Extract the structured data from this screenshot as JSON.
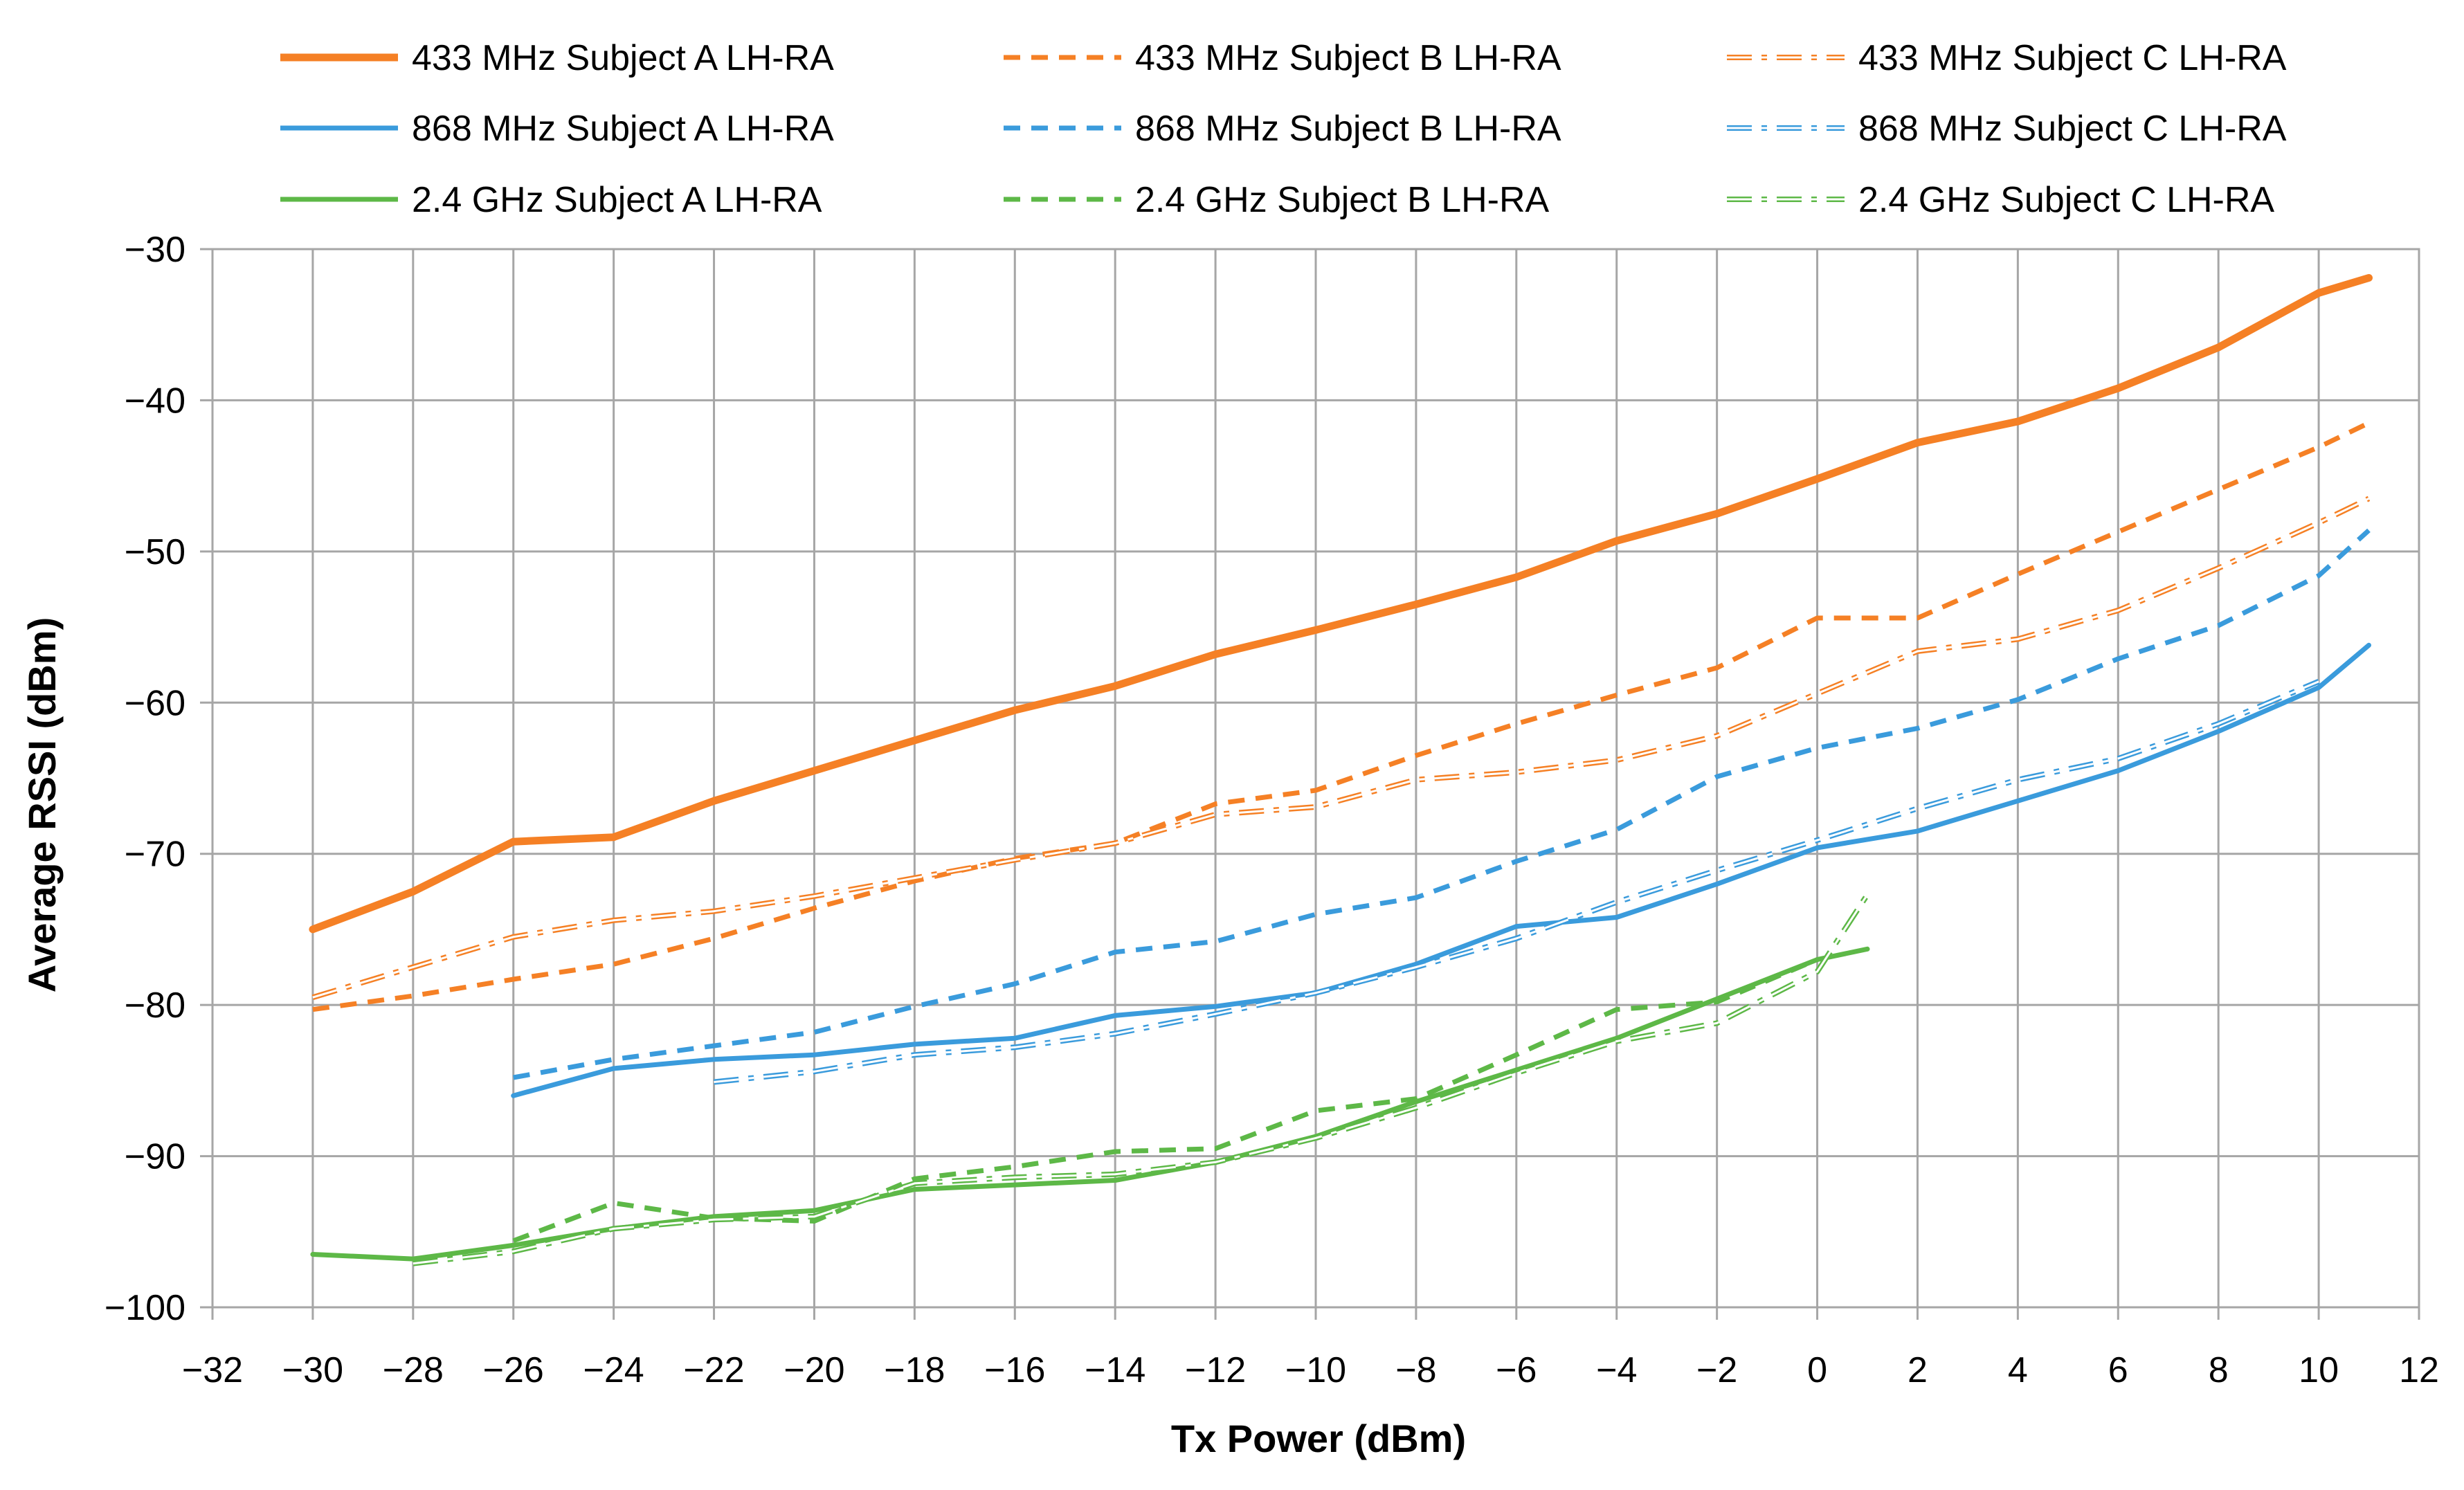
{
  "chart_data": {
    "type": "line",
    "title": "",
    "xlabel": "Tx Power (dBm)",
    "ylabel": "Average RSSI (dBm)",
    "xlim": [
      -32,
      12
    ],
    "ylim": [
      -100,
      -30
    ],
    "xticks": [
      -32,
      -30,
      -28,
      -26,
      -24,
      -22,
      -20,
      -18,
      -16,
      -14,
      -12,
      -10,
      -8,
      -6,
      -4,
      -2,
      0,
      2,
      4,
      6,
      8,
      10,
      12
    ],
    "yticks": [
      -100,
      -90,
      -80,
      -70,
      -60,
      -50,
      -40,
      -30
    ],
    "tick_labels": {
      "x": [
        "−32",
        "−30",
        "−28",
        "−26",
        "−24",
        "−22",
        "−20",
        "−18",
        "−16",
        "−14",
        "−12",
        "−10",
        "−8",
        "−6",
        "−4",
        "−2",
        "0",
        "2",
        "4",
        "6",
        "8",
        "10",
        "12"
      ],
      "y": [
        "−100",
        "−90",
        "−80",
        "−70",
        "−60",
        "−50",
        "−40",
        "−30"
      ]
    },
    "grid": true,
    "legend_position": "top",
    "series": [
      {
        "name": "433 MHz Subject A LH-RA",
        "color": "#F58025",
        "style": "solid",
        "weight": "thick",
        "x": [
          -30,
          -28,
          -26,
          -24,
          -22,
          -20,
          -18,
          -16,
          -14,
          -12,
          -10,
          -8,
          -6,
          -4,
          -2,
          0,
          2,
          4,
          6,
          8,
          10,
          11
        ],
        "y": [
          -75,
          -72.5,
          -69.2,
          -68.9,
          -66.5,
          -64.5,
          -62.5,
          -60.5,
          -58.9,
          -56.8,
          -55.2,
          -53.5,
          -51.7,
          -49.3,
          -47.5,
          -45.2,
          -42.8,
          -41.4,
          -39.2,
          -36.5,
          -32.9,
          -31.9
        ]
      },
      {
        "name": "433 MHz Subject B LH-RA",
        "color": "#F58025",
        "style": "dash",
        "weight": "normal",
        "x": [
          -30,
          -28,
          -26,
          -24,
          -22,
          -20,
          -18,
          -16,
          -14,
          -12,
          -10,
          -8,
          -6,
          -4,
          -2,
          0,
          2,
          4,
          6,
          8,
          10,
          11
        ],
        "y": [
          -80.3,
          -79.4,
          -78.3,
          -77.3,
          -75.6,
          -73.6,
          -71.8,
          -70.3,
          -69.3,
          -66.7,
          -65.8,
          -63.5,
          -61.4,
          -59.5,
          -57.7,
          -54.4,
          -54.4,
          -51.5,
          -48.7,
          -45.9,
          -43.1,
          -41.5
        ]
      },
      {
        "name": "433 MHz Subject C LH-RA",
        "color": "#F58025",
        "style": "dashdot",
        "weight": "light",
        "x": [
          -30,
          -28,
          -26,
          -24,
          -22,
          -20,
          -18,
          -16,
          -14,
          -12,
          -10,
          -8,
          -6,
          -4,
          -2,
          0,
          2,
          4,
          6,
          8,
          10,
          11
        ],
        "y": [
          -79.5,
          -77.5,
          -75.5,
          -74.4,
          -73.8,
          -72.8,
          -71.6,
          -70.4,
          -69.3,
          -67.4,
          -66.9,
          -65.1,
          -64.6,
          -63.8,
          -62.2,
          -59.4,
          -56.6,
          -55.8,
          -53.9,
          -51.1,
          -48.1,
          -46.5
        ]
      },
      {
        "name": "868 MHz Subject A LH-RA",
        "color": "#3A9BDC",
        "style": "solid",
        "weight": "normal",
        "x": [
          -26,
          -24,
          -22,
          -20,
          -18,
          -16,
          -14,
          -12,
          -10,
          -8,
          -6,
          -4,
          -2,
          0,
          2,
          4,
          6,
          8,
          10,
          11
        ],
        "y": [
          -86,
          -84.2,
          -83.6,
          -83.3,
          -82.6,
          -82.2,
          -80.7,
          -80.1,
          -79.2,
          -77.3,
          -74.8,
          -74.2,
          -72,
          -69.6,
          -68.5,
          -66.5,
          -64.5,
          -61.9,
          -59,
          -56.2
        ]
      },
      {
        "name": "868 MHz Subject B LH-RA",
        "color": "#3A9BDC",
        "style": "dash",
        "weight": "normal",
        "x": [
          -26,
          -24,
          -22,
          -20,
          -18,
          -16,
          -14,
          -12,
          -10,
          -8,
          -6,
          -4,
          -2,
          0,
          2,
          4,
          6,
          8,
          10,
          11
        ],
        "y": [
          -84.8,
          -83.6,
          -82.7,
          -81.8,
          -80.1,
          -78.6,
          -76.5,
          -75.8,
          -74,
          -72.9,
          -70.5,
          -68.4,
          -64.9,
          -63,
          -61.7,
          -59.8,
          -57.1,
          -54.9,
          -51.6,
          -48.6
        ]
      },
      {
        "name": "868 MHz Subject C LH-RA",
        "color": "#3A9BDC",
        "style": "dashdot",
        "weight": "light",
        "x": [
          -22,
          -20,
          -18,
          -16,
          -14,
          -12,
          -10,
          -8,
          -6,
          -4,
          -2,
          0,
          2,
          4,
          6,
          8,
          10
        ],
        "y": [
          -85.1,
          -84.4,
          -83.3,
          -82.8,
          -81.9,
          -80.6,
          -79.2,
          -77.5,
          -75.6,
          -73.2,
          -71.1,
          -69.1,
          -67,
          -65.1,
          -63.7,
          -61.4,
          -58.6
        ]
      },
      {
        "name": "2.4 GHz Subject A LH-RA",
        "color": "#5DB847",
        "style": "solid",
        "weight": "normal",
        "x": [
          -30,
          -28,
          -26,
          -24,
          -22,
          -20,
          -18,
          -16,
          -14,
          -12,
          -10,
          -8,
          -6,
          -4,
          -2,
          0,
          1
        ],
        "y": [
          -96.5,
          -96.8,
          -95.9,
          -94.8,
          -94,
          -93.6,
          -92.2,
          -91.9,
          -91.6,
          -90.4,
          -88.7,
          -86.4,
          -84.3,
          -82.2,
          -79.6,
          -77,
          -76.3
        ]
      },
      {
        "name": "2.4 GHz Subject B LH-RA",
        "color": "#5DB847",
        "style": "dash",
        "weight": "normal",
        "x": [
          -26,
          -24,
          -22,
          -20,
          -18,
          -16,
          -14,
          -12,
          -10,
          -8,
          -6,
          -4,
          -2,
          0
        ],
        "y": [
          -95.6,
          -93.1,
          -94.1,
          -94.3,
          -91.5,
          -90.7,
          -89.7,
          -89.5,
          -87,
          -86.2,
          -83.3,
          -80.3,
          -79.8,
          -77
        ]
      },
      {
        "name": "2.4 GHz Subject C LH-RA",
        "color": "#5DB847",
        "style": "dashdot",
        "weight": "light",
        "x": [
          -28,
          -26,
          -24,
          -22,
          -20,
          -18,
          -16,
          -14,
          -12,
          -10,
          -8,
          -6,
          -4,
          -2,
          0,
          1
        ],
        "y": [
          -97.1,
          -96.3,
          -94.8,
          -94.2,
          -94,
          -91.8,
          -91.4,
          -91.2,
          -90.4,
          -88.8,
          -86.8,
          -84.5,
          -82.4,
          -81.2,
          -77.8,
          -72.7
        ]
      }
    ]
  }
}
